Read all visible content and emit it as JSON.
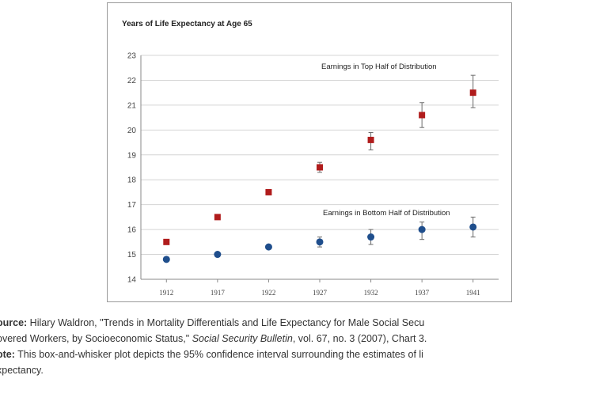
{
  "chart_data": {
    "type": "scatter",
    "ylabel": "Years of Life Expectancy at Age 65",
    "ylim": [
      14,
      23
    ],
    "yticks": [
      14,
      15,
      16,
      17,
      18,
      19,
      20,
      21,
      22,
      23
    ],
    "categories": [
      "1912",
      "1917",
      "1922",
      "1927",
      "1932",
      "1937",
      "1941"
    ],
    "grid": true,
    "series": [
      {
        "name": "Earnings in Top Half of Distribution",
        "marker": "square",
        "color": "#b01c1c",
        "values": [
          15.5,
          16.5,
          17.5,
          18.5,
          19.6,
          20.6,
          21.5
        ],
        "ci_low": [
          15.5,
          16.5,
          17.5,
          18.3,
          19.2,
          20.1,
          20.9
        ],
        "ci_high": [
          15.5,
          16.5,
          17.5,
          18.7,
          19.9,
          21.1,
          22.2
        ]
      },
      {
        "name": "Earnings in Bottom Half of Distribution",
        "marker": "circle",
        "color": "#1f4e8c",
        "values": [
          14.8,
          15.0,
          15.3,
          15.5,
          15.7,
          16.0,
          16.1
        ],
        "ci_low": [
          14.8,
          15.0,
          15.3,
          15.3,
          15.4,
          15.6,
          15.7
        ],
        "ci_high": [
          14.8,
          15.0,
          15.3,
          15.7,
          16.0,
          16.3,
          16.5
        ]
      }
    ]
  },
  "caption": {
    "source_lead": "ource:",
    "source_text": " Hilary Waldron, \"Trends in Mortality Differentials and Life Expectancy for Male Social Secu",
    "source_line2_a": "overed Workers, by Socioeconomic Status,\" ",
    "source_journal": "Social Security Bulletin",
    "source_line2_b": ", vol. 67, no. 3 (2007), Chart 3.",
    "note_lead": "ote:",
    "note_text": " This box-and-whisker plot depicts the 95% confidence interval surrounding the estimates of li",
    "note_line2": "xpectancy."
  }
}
